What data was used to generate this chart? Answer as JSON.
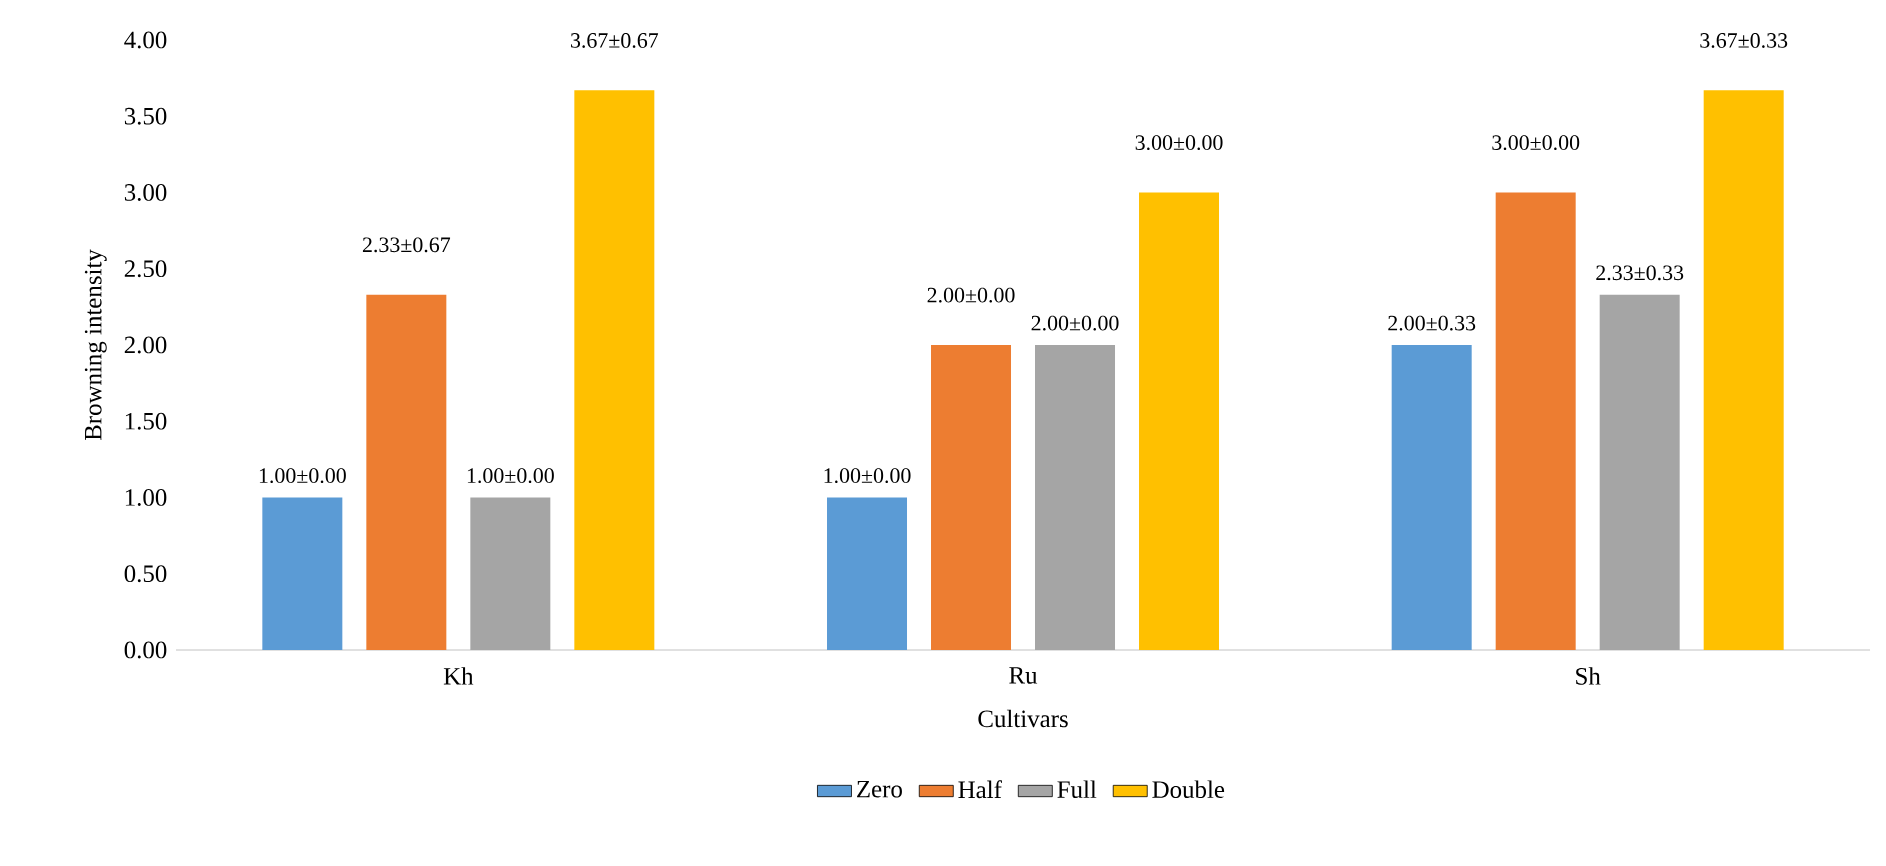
{
  "chart_data": {
    "type": "bar",
    "xlabel": "Cultivars",
    "ylabel": "Browning intensity",
    "categories": [
      "Kh",
      "Ru",
      "Sh"
    ],
    "series": [
      {
        "name": "Zero",
        "color": "#5b9bd5",
        "values": [
          1.0,
          1.0,
          2.0
        ],
        "value_labels": [
          "1.00±0.00",
          "1.00±0.00",
          "2.00±0.33"
        ]
      },
      {
        "name": "Half",
        "color": "#ed7d31",
        "values": [
          2.33,
          2.0,
          3.0
        ],
        "value_labels": [
          "2.33±0.67",
          "2.00±0.00",
          "3.00±0.00"
        ]
      },
      {
        "name": "Full",
        "color": "#a5a5a5",
        "values": [
          1.0,
          2.0,
          2.33
        ],
        "value_labels": [
          "1.00±0.00",
          "2.00±0.00",
          "2.33±0.33"
        ]
      },
      {
        "name": "Double",
        "color": "#ffc000",
        "values": [
          3.67,
          3.0,
          3.67
        ],
        "value_labels": [
          "3.67±0.67",
          "3.00±0.00",
          "3.67±0.33"
        ]
      }
    ],
    "ylim": [
      0,
      4
    ],
    "yticks": [
      {
        "value": 0,
        "label": "0.00"
      },
      {
        "value": 0.5,
        "label": "0.50"
      },
      {
        "value": 1,
        "label": "1.00"
      },
      {
        "value": 1.5,
        "label": "1.50"
      },
      {
        "value": 2,
        "label": "2.00"
      },
      {
        "value": 2.5,
        "label": "2.50"
      },
      {
        "value": 3,
        "label": "3.00"
      },
      {
        "value": 3.5,
        "label": "3.50"
      },
      {
        "value": 4,
        "label": "4.00"
      }
    ],
    "grid": false,
    "legend": "bottom"
  }
}
